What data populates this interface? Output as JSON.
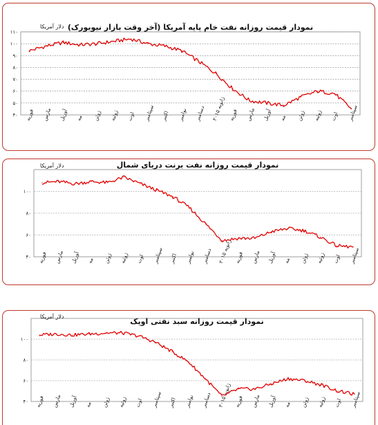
{
  "chart_data": [
    {
      "type": "line",
      "title": "نمودار قیمت روزانه نفت خام پایه آمریکا (آخر وقت بازار نیویورک)",
      "ylabel": "دلار آمریکا",
      "ylim": [
        40,
        110
      ],
      "yticks": [
        "۴۰",
        "۵۰",
        "۶۰",
        "۷۰",
        "۸۰",
        "۹۰",
        "۱۰۰",
        "۱۱۰"
      ],
      "yticks_values": [
        40,
        50,
        60,
        70,
        80,
        90,
        100,
        110
      ],
      "grid": true,
      "categories": [
        "فوریه",
        "مارس",
        "آوریل",
        "مه",
        "ژوئن",
        "ژوئیه",
        "اوت",
        "سپتامبر",
        "اکتبر",
        "نوامبر",
        "دسامبر",
        "ژانویه ۲۰۱۵",
        "فوریه",
        "مارس",
        "آوریل",
        "مه",
        "ژوئن",
        "ژوئیه",
        "اوت",
        "سپتامبر"
      ],
      "series": [
        {
          "values": [
            94,
            98,
            101,
            99,
            100,
            102,
            104,
            100,
            98,
            94,
            85,
            75,
            62,
            52,
            50,
            48,
            55,
            60,
            58,
            45
          ]
        }
      ],
      "color": "#e00000"
    },
    {
      "type": "line",
      "title": "نمودار قیمت روزانه نفت برنت دریای شمال",
      "ylabel": "دلار آمریکا",
      "ylim": [
        40,
        120
      ],
      "yticks": [
        "۴۰",
        "۶۰",
        "۸۰",
        "۱۰۰"
      ],
      "yticks_values": [
        40,
        60,
        80,
        100
      ],
      "grid": true,
      "categories": [
        "فوریه",
        "مارس",
        "آوریل",
        "مه",
        "ژوئن",
        "ژوئیه",
        "اوت",
        "سپتامبر",
        "اکتبر",
        "نوامبر",
        "دسامبر",
        "ژانویه ۲۰۱۵",
        "فوریه",
        "مارس",
        "آوریل",
        "مه",
        "ژوئن",
        "ژوئیه",
        "اوت",
        "سپتامبر"
      ],
      "series": [
        {
          "values": [
            108,
            109,
            107,
            109,
            108,
            113,
            107,
            101,
            95,
            85,
            70,
            55,
            57,
            57,
            63,
            66,
            64,
            58,
            50,
            49
          ]
        }
      ],
      "color": "#e00000"
    },
    {
      "type": "line",
      "title": "نمودار قیمت روزانه سبد نفتی اوپک",
      "ylabel": "دلار آمریکا",
      "ylim": [
        40,
        120
      ],
      "yticks": [
        "۴۰",
        "۶۰",
        "۸۰",
        "۱۰۰"
      ],
      "yticks_values": [
        40,
        60,
        80,
        100
      ],
      "grid": true,
      "categories": [
        "فوریه",
        "مارس",
        "آوریل",
        "مه",
        "ژوئن",
        "ژوئیه",
        "اوت",
        "سپتامبر",
        "اکتبر",
        "نوامبر",
        "دسامبر",
        "ژانویه ۲۰۱۵",
        "فوریه",
        "مارس",
        "آوریل",
        "مه",
        "ژوئن",
        "ژوئیه",
        "اوت",
        "سپتامبر"
      ],
      "series": [
        {
          "values": [
            104,
            105,
            104,
            105,
            106,
            106,
            103,
            97,
            88,
            78,
            62,
            45,
            52,
            52,
            57,
            62,
            60,
            56,
            50,
            47
          ]
        }
      ],
      "color": "#e00000"
    }
  ]
}
